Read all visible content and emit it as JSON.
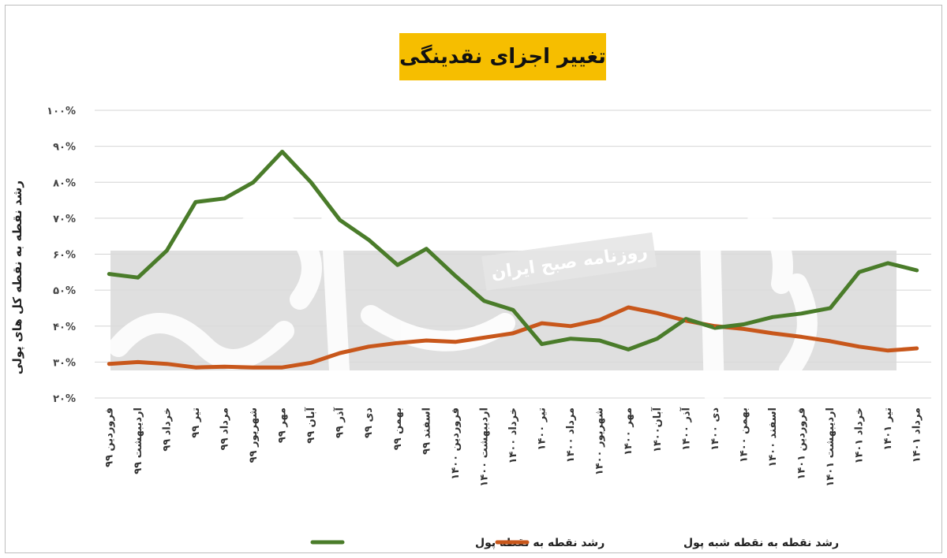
{
  "chart_data": {
    "type": "line",
    "title": "تغییر اجزای نقدینگی",
    "ylabel": "رشد نقطه به نقطه کل های پولی",
    "ylim": [
      20,
      100
    ],
    "yticks": [
      "۲۰%",
      "۳۰%",
      "۴۰%",
      "۵۰%",
      "۶۰%",
      "۷۰%",
      "۸۰%",
      "۹۰%",
      "۱۰۰%"
    ],
    "grid": true,
    "legend_position": "bottom",
    "categories": [
      "فروردین ۹۹",
      "اردیبهشت ۹۹",
      "خرداد ۹۹",
      "تیر ۹۹",
      "مرداد ۹۹",
      "شهریور ۹۹",
      "مهر ۹۹",
      "آبان ۹۹",
      "آذر ۹۹",
      "دی ۹۹",
      "بهمن ۹۹",
      "اسفند ۹۹",
      "فروردین ۱۴۰۰",
      "اردیبهشت ۱۴۰۰",
      "خرداد ۱۴۰۰",
      "تیر ۱۴۰۰",
      "مرداد ۱۴۰۰",
      "شهریور ۱۴۰۰",
      "مهر ۱۴۰۰",
      "آبان۱۴۰۰",
      "آذر ۱۴۰۰",
      "دی ۱۴۰۰",
      "بهمن ۱۴۰۰",
      "اسفند ۱۴۰۰",
      "فروردین ۱۴۰۱",
      "اردیبهشت ۱۴۰۱",
      "خرداد ۱۴۰۱",
      "تیر ۱۴۰۱",
      "مرداد ۱۴۰۱"
    ],
    "series": [
      {
        "name": "رشد نقطه به نقطه پول",
        "color": "#4a7c2a",
        "values": [
          54.5,
          53.5,
          61,
          74.5,
          75.5,
          80,
          88.5,
          80,
          69.5,
          64,
          57,
          61.5,
          54,
          47,
          44.5,
          35,
          36.5,
          36,
          33.5,
          36.5,
          42,
          39.5,
          40.5,
          42.5,
          43.5,
          45,
          55,
          57.5,
          55.5
        ]
      },
      {
        "name": "رشد نقطه به نقطه شبه پول",
        "color": "#c8571b",
        "values": [
          29.5,
          30,
          29.5,
          28.5,
          28.7,
          28.5,
          28.5,
          29.8,
          32.5,
          34.3,
          35.3,
          36,
          35.6,
          36.8,
          38,
          40.8,
          40,
          41.7,
          45.2,
          43.6,
          41.5,
          40,
          39.2,
          38,
          37,
          35.8,
          34.3,
          33.2,
          33.8
        ]
      }
    ]
  },
  "watermark": {
    "logo_text": "دنیای اقتصاد",
    "band_text": "روزنامه صبح ایران"
  }
}
